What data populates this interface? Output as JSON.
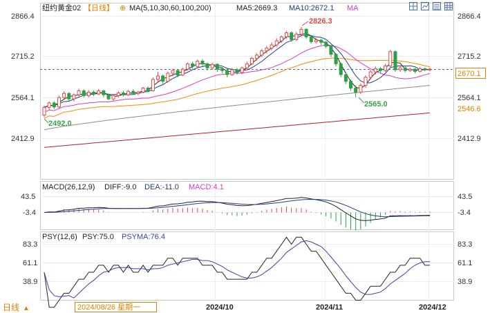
{
  "header": {
    "symbol": "纽约黄金02",
    "period_tag": "【日线】",
    "zoom_symbol": "⊕",
    "ma_spec": "MA(5,10,30,60,100,200)",
    "ma5_text": "MA5:2669.3",
    "ma10_text": "MA10:2672.1",
    "ma_extra_text": "MA"
  },
  "toolbar_icons": [
    "layout-grid-icon",
    "chart-toggle-icon",
    "list-icon",
    "grid-icon"
  ],
  "price_axis": {
    "left_ticks": [
      "2866.4",
      "2715.2",
      "2564.1",
      "2412.9"
    ],
    "right_ticks": [
      "2866.4",
      "2715.2",
      "2564.1",
      "2412.9"
    ],
    "current_price_label": "2670.1",
    "ma_right_label": "2546.6"
  },
  "annotations": {
    "high": "2826.3",
    "low_left": "2492.0",
    "low_mid": "2565.0"
  },
  "macd": {
    "title": "MACD(26,12,9)",
    "diff_text": "DIFF:-9.0",
    "dea_text": "DEA:-11.0",
    "macd_text": "MACD:4.1",
    "ticks": [
      "43.5",
      "-3.4"
    ]
  },
  "psy": {
    "title": "PSY(12,6)",
    "psy_text": "PSY:75.0",
    "psyma_text": "PSYMA:76.4",
    "ticks": [
      "83.3",
      "61.1",
      "38.9"
    ]
  },
  "footer": {
    "period": "日线",
    "period_arrow": "▲",
    "date_label": "2024/08/26 星期一",
    "months": [
      "2024/10",
      "2024/11",
      "2024/12"
    ]
  },
  "colors": {
    "up": "#e04848",
    "down": "#2f9e44",
    "ma5": "#222222",
    "ma10": "#1f3c88",
    "ma30": "#d63bc4",
    "ma60": "#f08c00",
    "ma100": "#8c8c8c",
    "ma200": "#b22222",
    "accent_orange": "#e08000",
    "label_green": "#3aa04a",
    "psy": "#222222",
    "psyma": "#3344aa"
  },
  "chart_data": {
    "type": "candlestick",
    "x_start": "2024/08/26",
    "price_range": [
      2350,
      2900
    ],
    "high_label": 2826.3,
    "low_labels": [
      2492.0,
      2565.0
    ],
    "last": 2670.1,
    "candles": [
      [
        2500,
        2528,
        2492,
        2535
      ],
      [
        2528,
        2545,
        2520,
        2550
      ],
      [
        2545,
        2530,
        2522,
        2552
      ],
      [
        2530,
        2565,
        2525,
        2572
      ],
      [
        2565,
        2580,
        2558,
        2588
      ],
      [
        2580,
        2560,
        2552,
        2585
      ],
      [
        2560,
        2575,
        2550,
        2580
      ],
      [
        2575,
        2590,
        2570,
        2598
      ],
      [
        2590,
        2572,
        2565,
        2596
      ],
      [
        2572,
        2585,
        2566,
        2592
      ],
      [
        2585,
        2578,
        2570,
        2592
      ],
      [
        2578,
        2590,
        2574,
        2596
      ],
      [
        2590,
        2575,
        2566,
        2594
      ],
      [
        2575,
        2560,
        2555,
        2580
      ],
      [
        2560,
        2572,
        2552,
        2578
      ],
      [
        2572,
        2582,
        2565,
        2588
      ],
      [
        2582,
        2575,
        2568,
        2590
      ],
      [
        2575,
        2588,
        2570,
        2593
      ],
      [
        2588,
        2580,
        2575,
        2595
      ],
      [
        2580,
        2585,
        2573,
        2590
      ],
      [
        2585,
        2600,
        2580,
        2605
      ],
      [
        2600,
        2590,
        2585,
        2606
      ],
      [
        2590,
        2632,
        2588,
        2640
      ],
      [
        2632,
        2645,
        2620,
        2660
      ],
      [
        2645,
        2625,
        2615,
        2650
      ],
      [
        2625,
        2655,
        2620,
        2662
      ],
      [
        2655,
        2665,
        2645,
        2672
      ],
      [
        2665,
        2648,
        2640,
        2670
      ],
      [
        2648,
        2670,
        2644,
        2676
      ],
      [
        2670,
        2690,
        2665,
        2695
      ],
      [
        2690,
        2680,
        2672,
        2698
      ],
      [
        2680,
        2700,
        2675,
        2706
      ],
      [
        2700,
        2690,
        2682,
        2708
      ],
      [
        2690,
        2675,
        2665,
        2695
      ],
      [
        2675,
        2688,
        2668,
        2694
      ],
      [
        2688,
        2670,
        2660,
        2692
      ],
      [
        2670,
        2665,
        2655,
        2678
      ],
      [
        2665,
        2650,
        2640,
        2672
      ],
      [
        2650,
        2668,
        2645,
        2675
      ],
      [
        2668,
        2658,
        2650,
        2675
      ],
      [
        2658,
        2675,
        2652,
        2680
      ],
      [
        2675,
        2690,
        2670,
        2698
      ],
      [
        2690,
        2710,
        2685,
        2715
      ],
      [
        2710,
        2722,
        2702,
        2730
      ],
      [
        2722,
        2738,
        2715,
        2745
      ],
      [
        2738,
        2748,
        2728,
        2756
      ],
      [
        2748,
        2760,
        2740,
        2770
      ],
      [
        2760,
        2775,
        2752,
        2785
      ],
      [
        2775,
        2790,
        2768,
        2795
      ],
      [
        2790,
        2805,
        2782,
        2812
      ],
      [
        2805,
        2780,
        2772,
        2810
      ],
      [
        2780,
        2800,
        2775,
        2808
      ],
      [
        2800,
        2818,
        2795,
        2826.3
      ],
      [
        2818,
        2790,
        2782,
        2822
      ],
      [
        2790,
        2772,
        2765,
        2795
      ],
      [
        2772,
        2778,
        2765,
        2785
      ],
      [
        2778,
        2770,
        2760,
        2782
      ],
      [
        2770,
        2755,
        2748,
        2775
      ],
      [
        2755,
        2725,
        2715,
        2760
      ],
      [
        2725,
        2690,
        2680,
        2730
      ],
      [
        2690,
        2650,
        2640,
        2695
      ],
      [
        2650,
        2625,
        2615,
        2660
      ],
      [
        2625,
        2600,
        2590,
        2632
      ],
      [
        2600,
        2585,
        2565,
        2610
      ],
      [
        2585,
        2610,
        2578,
        2618
      ],
      [
        2610,
        2640,
        2602,
        2648
      ],
      [
        2640,
        2660,
        2632,
        2668
      ],
      [
        2660,
        2672,
        2650,
        2680
      ],
      [
        2672,
        2665,
        2655,
        2678
      ],
      [
        2665,
        2682,
        2660,
        2690
      ],
      [
        2682,
        2735,
        2675,
        2742
      ],
      [
        2735,
        2668,
        2660,
        2740
      ],
      [
        2668,
        2675,
        2660,
        2682
      ],
      [
        2675,
        2665,
        2658,
        2680
      ],
      [
        2665,
        2670,
        2660,
        2676
      ],
      [
        2670,
        2662,
        2655,
        2675
      ],
      [
        2662,
        2672,
        2658,
        2678
      ],
      [
        2672,
        2668,
        2662,
        2676
      ],
      [
        2668,
        2670.1,
        2662,
        2676
      ]
    ]
  }
}
